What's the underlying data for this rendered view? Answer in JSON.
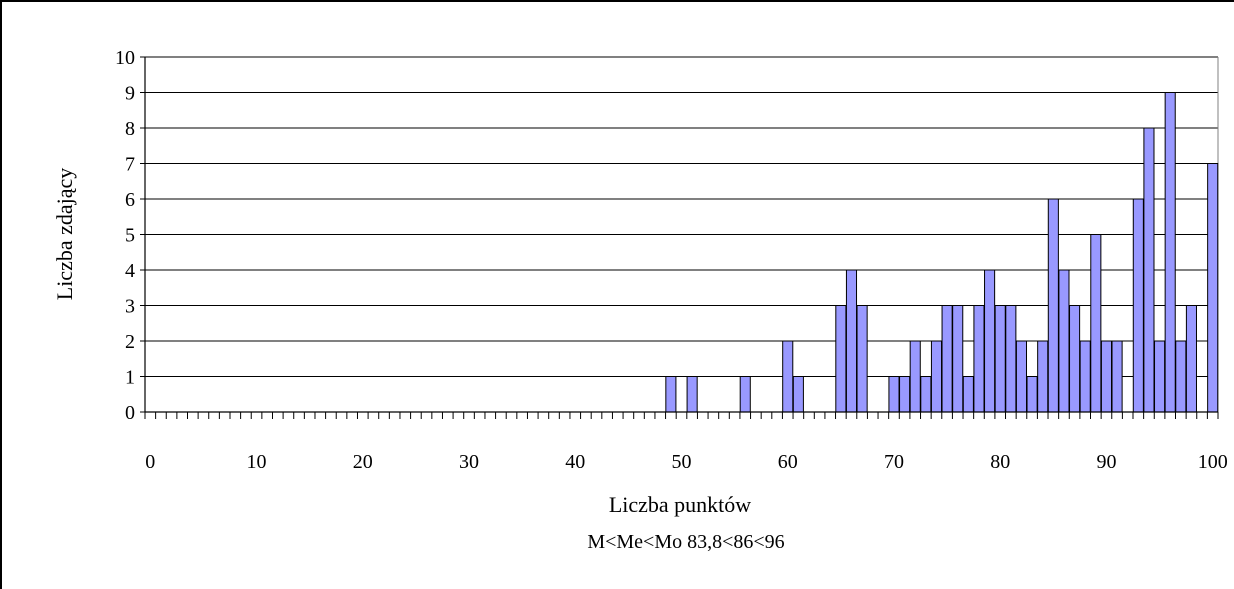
{
  "chart_data": {
    "type": "bar",
    "xlabel": "Liczba punktów",
    "ylabel": "Liczba zdających",
    "ylabel_visible": "Liczba zdający",
    "subtitle": "M<Me<Mo  83,8<86<96",
    "xlim": [
      0,
      100
    ],
    "ylim": [
      0,
      10
    ],
    "x_ticks": [
      0,
      10,
      20,
      30,
      40,
      50,
      60,
      70,
      80,
      90,
      100
    ],
    "y_ticks": [
      0,
      1,
      2,
      3,
      4,
      5,
      6,
      7,
      8,
      9,
      10
    ],
    "grid": "horizontal",
    "bar_color": "#9999ff",
    "x": [
      0,
      1,
      2,
      3,
      4,
      5,
      6,
      7,
      8,
      9,
      10,
      11,
      12,
      13,
      14,
      15,
      16,
      17,
      18,
      19,
      20,
      21,
      22,
      23,
      24,
      25,
      26,
      27,
      28,
      29,
      30,
      31,
      32,
      33,
      34,
      35,
      36,
      37,
      38,
      39,
      40,
      41,
      42,
      43,
      44,
      45,
      46,
      47,
      48,
      49,
      50,
      51,
      52,
      53,
      54,
      55,
      56,
      57,
      58,
      59,
      60,
      61,
      62,
      63,
      64,
      65,
      66,
      67,
      68,
      69,
      70,
      71,
      72,
      73,
      74,
      75,
      76,
      77,
      78,
      79,
      80,
      81,
      82,
      83,
      84,
      85,
      86,
      87,
      88,
      89,
      90,
      91,
      92,
      93,
      94,
      95,
      96,
      97,
      98,
      99,
      100
    ],
    "values": [
      0,
      0,
      0,
      0,
      0,
      0,
      0,
      0,
      0,
      0,
      0,
      0,
      0,
      0,
      0,
      0,
      0,
      0,
      0,
      0,
      0,
      0,
      0,
      0,
      0,
      0,
      0,
      0,
      0,
      0,
      0,
      0,
      0,
      0,
      0,
      0,
      0,
      0,
      0,
      0,
      0,
      0,
      0,
      0,
      0,
      0,
      0,
      0,
      0,
      1,
      0,
      1,
      0,
      0,
      0,
      0,
      1,
      0,
      0,
      0,
      2,
      1,
      0,
      0,
      0,
      3,
      4,
      3,
      0,
      0,
      1,
      1,
      2,
      1,
      2,
      3,
      3,
      1,
      3,
      4,
      3,
      3,
      2,
      1,
      2,
      6,
      4,
      3,
      2,
      5,
      2,
      2,
      0,
      6,
      8,
      2,
      9,
      2,
      3,
      0,
      7
    ]
  }
}
